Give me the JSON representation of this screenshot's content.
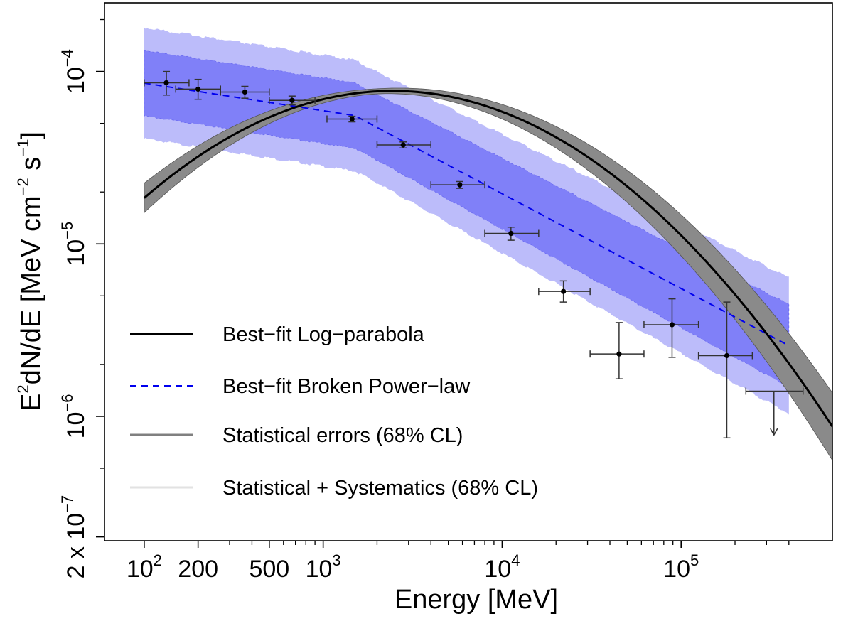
{
  "chart_data": {
    "type": "line",
    "xscale": "log",
    "yscale": "log",
    "xlim": [
      60,
      700000
    ],
    "ylim": [
      1.9e-07,
      0.00025
    ],
    "xlabel": "Energy [MeV]",
    "ylabel": {
      "prefix": "E",
      "sup1": "2",
      "main": "dN/dE [MeV cm",
      "sup2": "−2",
      "mid": " s",
      "sup3": "−1",
      "end": "]"
    },
    "x_ticks": [
      {
        "value": 100,
        "base": "10",
        "exp": "2"
      },
      {
        "value": 200,
        "text": "200"
      },
      {
        "value": 500,
        "text": "500"
      },
      {
        "value": 1000,
        "base": "10",
        "exp": "3"
      },
      {
        "value": 10000,
        "base": "10",
        "exp": "4"
      },
      {
        "value": 100000,
        "base": "10",
        "exp": "5"
      }
    ],
    "x_minor_ticks": [
      300,
      400,
      600,
      700,
      800,
      900,
      2000,
      3000,
      4000,
      5000,
      6000,
      7000,
      8000,
      9000,
      20000,
      30000,
      40000,
      50000,
      60000,
      70000,
      80000,
      90000,
      200000,
      300000,
      400000
    ],
    "y_ticks": [
      {
        "value": 0.0001,
        "base": "10",
        "exp": "−4"
      },
      {
        "value": 1e-05,
        "base": "10",
        "exp": "−5"
      },
      {
        "value": 1e-06,
        "base": "10",
        "exp": "−6"
      },
      {
        "value": 2e-07,
        "prefix": "2 x ",
        "base": "10",
        "exp": "−7"
      }
    ],
    "y_minor_ticks": [
      0.0002,
      5e-05,
      2e-05,
      5e-06,
      2e-06,
      5e-07
    ],
    "series": [
      {
        "name": "Best−fit Log−parabola",
        "kind": "logparabola",
        "E0": 1000,
        "K": 6.9e-05,
        "alpha": 1.75,
        "beta": 0.14,
        "x_range": [
          100,
          700000
        ],
        "color": "#000000",
        "stat_band_color": "#8a8a8a"
      },
      {
        "name": "Best−fit Broken Power−law",
        "kind": "brokenpowerlaw",
        "break_energy": 1500,
        "value_at_break": 5.55e-05,
        "index_low": 2.16,
        "index_high": 2.55,
        "x_range": [
          100,
          400000
        ],
        "color": "#0000ee",
        "inner_band_factor": 1.55,
        "outer_band_factor": 2.1,
        "inner_band_color": "#8080f8",
        "outer_band_color": "#bcbcfa"
      }
    ],
    "points": [
      {
        "x": 133,
        "y": 8.6e-05,
        "xlo": 100,
        "xhi": 178,
        "ylo": 7.3e-05,
        "yhi": 0.0001
      },
      {
        "x": 200,
        "y": 7.9e-05,
        "xlo": 150,
        "xhi": 267,
        "ylo": 6.9e-05,
        "yhi": 9e-05
      },
      {
        "x": 365,
        "y": 7.6e-05,
        "xlo": 267,
        "xhi": 500,
        "ylo": 7e-05,
        "yhi": 8.2e-05
      },
      {
        "x": 670,
        "y": 6.8e-05,
        "xlo": 500,
        "xhi": 900,
        "ylo": 6.4e-05,
        "yhi": 7.2e-05
      },
      {
        "x": 1450,
        "y": 5.3e-05,
        "xlo": 1050,
        "xhi": 2000,
        "ylo": 5.1e-05,
        "yhi": 5.5e-05
      },
      {
        "x": 2800,
        "y": 3.75e-05,
        "xlo": 2000,
        "xhi": 4000,
        "ylo": 3.6e-05,
        "yhi": 3.9e-05
      },
      {
        "x": 5800,
        "y": 2.2e-05,
        "xlo": 4000,
        "xhi": 8000,
        "ylo": 2.1e-05,
        "yhi": 2.3e-05
      },
      {
        "x": 11200,
        "y": 1.15e-05,
        "xlo": 8000,
        "xhi": 16000,
        "ylo": 1.05e-05,
        "yhi": 1.25e-05
      },
      {
        "x": 22000,
        "y": 5.3e-06,
        "xlo": 16000,
        "xhi": 31000,
        "ylo": 4.6e-06,
        "yhi": 6.1e-06
      },
      {
        "x": 45000,
        "y": 2.3e-06,
        "xlo": 31000,
        "xhi": 62000,
        "ylo": 1.65e-06,
        "yhi": 3.5e-06
      },
      {
        "x": 89000,
        "y": 3.4e-06,
        "xlo": 62000,
        "xhi": 125000,
        "ylo": 2.2e-06,
        "yhi": 4.8e-06
      },
      {
        "x": 180000,
        "y": 2.25e-06,
        "xlo": 125000,
        "xhi": 250000,
        "ylo": 7.5e-07,
        "yhi": 4.6e-06
      }
    ],
    "upper_limits": [
      {
        "x": 330000,
        "y": 1.4e-06,
        "xlo": 230000,
        "xhi": 480000,
        "arrow_to": 7.8e-07
      }
    ],
    "legend": {
      "position": "bottom-left",
      "entries": [
        {
          "label": "Best−fit Log−parabola",
          "style": "solid",
          "color": "#000000"
        },
        {
          "label": "Best−fit Broken Power−law",
          "style": "dashed",
          "color": "#0000ee"
        },
        {
          "label": "Statistical errors (68% CL)",
          "style": "solid",
          "color": "#808080"
        },
        {
          "label": "Statistical + Systematics (68% CL)",
          "style": "solid",
          "color": "#e2e2e2"
        }
      ]
    }
  }
}
